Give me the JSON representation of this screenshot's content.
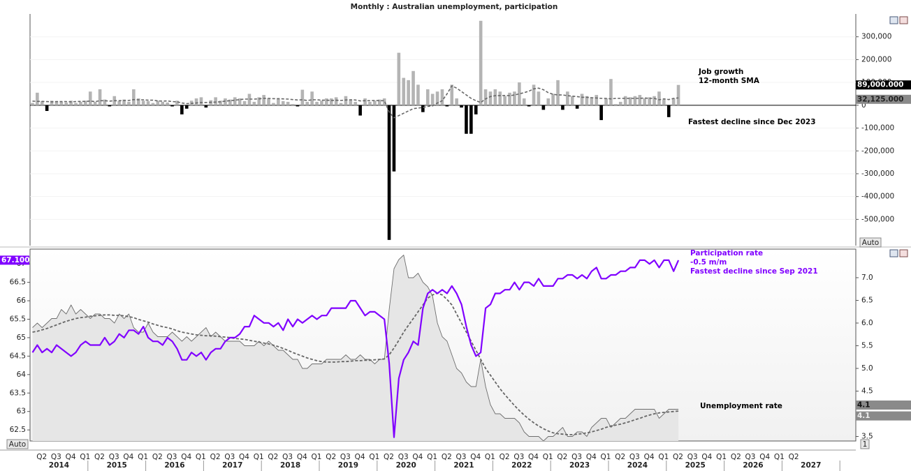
{
  "title": "Monthly : Australian unemployment, participation",
  "x_axis": {
    "quarters": [
      "Q2",
      "Q3",
      "Q4",
      "Q1",
      "Q2",
      "Q3",
      "Q4",
      "Q1",
      "Q2",
      "Q3",
      "Q4",
      "Q1",
      "Q2",
      "Q3",
      "Q4",
      "Q1",
      "Q2",
      "Q3",
      "Q4",
      "Q1",
      "Q2",
      "Q3",
      "Q4",
      "Q1",
      "Q2",
      "Q3",
      "Q4",
      "Q1",
      "Q2",
      "Q3",
      "Q4",
      "Q1",
      "Q2",
      "Q3",
      "Q4",
      "Q1",
      "Q2",
      "Q3",
      "Q4",
      "Q1",
      "Q2",
      "Q3",
      "Q4",
      "Q1",
      "Q2",
      "Q3",
      "Q4",
      "Q1",
      "Q2",
      "Q3",
      "Q4",
      "Q1",
      "Q2"
    ],
    "years": [
      2014,
      2015,
      2016,
      2017,
      2018,
      2019,
      2020,
      2021,
      2022,
      2023,
      2024,
      2025,
      2026,
      2027
    ]
  },
  "chart_data": [
    {
      "type": "bar",
      "series": [
        {
          "name": "Job growth",
          "type": "bar",
          "color": "#b4b4b4",
          "negative_color": "#000000",
          "last_label": "89,000.000",
          "values": [
            10000,
            55000,
            18000,
            -25000,
            20000,
            18000,
            15000,
            12000,
            20000,
            10000,
            15000,
            20000,
            60000,
            15000,
            70000,
            25000,
            -5000,
            40000,
            18000,
            25000,
            15000,
            70000,
            30000,
            20000,
            18000,
            10000,
            20000,
            15000,
            12000,
            -5000,
            20000,
            -40000,
            -15000,
            20000,
            30000,
            35000,
            -10000,
            22000,
            35000,
            20000,
            30000,
            25000,
            35000,
            30000,
            18000,
            50000,
            15000,
            35000,
            45000,
            30000,
            10000,
            28000,
            18000,
            15000,
            5000,
            -5000,
            68000,
            15000,
            60000,
            15000,
            20000,
            30000,
            30000,
            35000,
            10000,
            40000,
            25000,
            15000,
            -45000,
            30000,
            15000,
            20000,
            25000,
            30000,
            -590000,
            -290000,
            230000,
            120000,
            110000,
            150000,
            90000,
            -30000,
            70000,
            50000,
            60000,
            70000,
            -5000,
            90000,
            30000,
            -10000,
            -125000,
            -125000,
            -40000,
            370000,
            70000,
            60000,
            70000,
            60000,
            40000,
            55000,
            60000,
            100000,
            30000,
            -5000,
            90000,
            60000,
            -20000,
            30000,
            50000,
            110000,
            -20000,
            60000,
            40000,
            -15000,
            50000,
            40000,
            35000,
            45000,
            -65000,
            30000,
            115000,
            5000,
            15000,
            40000,
            35000,
            40000,
            45000,
            30000,
            35000,
            40000,
            60000,
            25000,
            -52000,
            30000,
            89000
          ]
        },
        {
          "name": "12-month SMA",
          "type": "line",
          "color": "#666666",
          "dashed": true,
          "last_label": "32,125.000",
          "values": [
            18000,
            17000,
            17000,
            16000,
            15000,
            16000,
            16000,
            16000,
            15000,
            16000,
            17000,
            17000,
            18000,
            16000,
            20000,
            20000,
            18000,
            20000,
            20000,
            21000,
            21000,
            25000,
            24000,
            24000,
            22000,
            22000,
            19000,
            18000,
            19000,
            16000,
            15000,
            10000,
            7000,
            8000,
            10000,
            12000,
            12000,
            13000,
            14000,
            15000,
            18000,
            20000,
            22000,
            25000,
            27000,
            27000,
            27000,
            28000,
            30000,
            30000,
            29000,
            29000,
            28000,
            27000,
            25000,
            23000,
            24000,
            21000,
            24000,
            24000,
            22000,
            22000,
            21000,
            22000,
            21000,
            23000,
            24000,
            23000,
            19000,
            20000,
            20000,
            21000,
            20000,
            20000,
            -30000,
            -55000,
            -45000,
            -35000,
            -25000,
            -15000,
            -12000,
            -10000,
            -5000,
            -3000,
            10000,
            20000,
            50000,
            85000,
            75000,
            60000,
            45000,
            30000,
            20000,
            12000,
            28000,
            38000,
            42000,
            42000,
            43000,
            42000,
            45000,
            50000,
            55000,
            62000,
            72000,
            75000,
            68000,
            55000,
            48000,
            45000,
            45000,
            42000,
            40000,
            38000,
            35000,
            35000,
            33000,
            32000,
            30000,
            30000,
            28000,
            30000,
            30000,
            30000,
            30000,
            30000,
            30000,
            32000,
            30000,
            30000,
            24000,
            28000,
            25000,
            30000,
            32125
          ]
        }
      ],
      "ylim": [
        -615000,
        400000
      ],
      "yticks": [
        {
          "value": 300000,
          "label": "300,000"
        },
        {
          "value": 200000,
          "label": "200,000"
        },
        {
          "value": 100000,
          "label": "100,000"
        },
        0,
        {
          "value": -100000,
          "label": "-100,000"
        },
        {
          "value": -200000,
          "label": "-200,000"
        },
        {
          "value": -300000,
          "label": "-300,000"
        },
        {
          "value": -400000,
          "label": "-400,000"
        },
        {
          "value": -500000,
          "label": "-500,000"
        }
      ],
      "annotations": [
        "Fastest decline since Dec 2023"
      ],
      "scale_label": "Auto"
    },
    {
      "type": "line",
      "series": [
        {
          "name": "Participation rate",
          "type": "line",
          "color": "#8000ff",
          "width": 2.2,
          "last_label": "67.100",
          "values": [
            64.6,
            64.8,
            64.6,
            64.7,
            64.6,
            64.8,
            64.7,
            64.6,
            64.5,
            64.6,
            64.8,
            64.9,
            64.8,
            64.8,
            64.8,
            65.0,
            64.8,
            64.9,
            65.1,
            65.0,
            65.2,
            65.2,
            65.1,
            65.3,
            65.0,
            64.9,
            64.9,
            64.8,
            65.0,
            64.9,
            64.7,
            64.4,
            64.4,
            64.6,
            64.5,
            64.6,
            64.4,
            64.6,
            64.7,
            64.7,
            64.9,
            65.0,
            65.0,
            65.1,
            65.3,
            65.3,
            65.6,
            65.5,
            65.4,
            65.4,
            65.3,
            65.4,
            65.2,
            65.5,
            65.3,
            65.5,
            65.4,
            65.5,
            65.6,
            65.5,
            65.6,
            65.6,
            65.8,
            65.8,
            65.8,
            65.8,
            66.0,
            66.0,
            65.8,
            65.6,
            65.7,
            65.7,
            65.6,
            65.5,
            64.3,
            62.3,
            63.9,
            64.4,
            64.6,
            64.9,
            64.8,
            65.8,
            66.2,
            66.3,
            66.2,
            66.3,
            66.2,
            66.4,
            66.2,
            65.9,
            65.3,
            64.8,
            64.5,
            64.6,
            65.8,
            65.9,
            66.2,
            66.2,
            66.3,
            66.3,
            66.5,
            66.3,
            66.5,
            66.5,
            66.4,
            66.6,
            66.4,
            66.4,
            66.4,
            66.6,
            66.6,
            66.7,
            66.7,
            66.6,
            66.7,
            66.6,
            66.8,
            66.9,
            66.6,
            66.6,
            66.7,
            66.7,
            66.8,
            66.8,
            66.9,
            66.9,
            67.1,
            67.1,
            67.0,
            67.1,
            66.9,
            67.1,
            67.1,
            66.8,
            67.1
          ]
        },
        {
          "name": "Unemployment rate",
          "type": "area",
          "axis": "y2",
          "color": "#6e6e6e",
          "fill": "#e6e6e6",
          "width": 0.9,
          "last_label": "4.1",
          "values": [
            5.9,
            6.0,
            5.9,
            6.0,
            6.1,
            6.1,
            6.3,
            6.2,
            6.4,
            6.2,
            6.3,
            6.2,
            6.1,
            6.2,
            6.2,
            6.1,
            6.1,
            6.0,
            6.2,
            6.1,
            6.2,
            5.9,
            5.8,
            5.8,
            6.0,
            5.8,
            5.7,
            5.7,
            5.7,
            5.8,
            5.7,
            5.6,
            5.7,
            5.6,
            5.7,
            5.8,
            5.9,
            5.7,
            5.8,
            5.7,
            5.6,
            5.6,
            5.6,
            5.6,
            5.5,
            5.5,
            5.5,
            5.6,
            5.5,
            5.6,
            5.5,
            5.4,
            5.4,
            5.3,
            5.2,
            5.2,
            5.0,
            5.0,
            5.1,
            5.1,
            5.1,
            5.2,
            5.2,
            5.2,
            5.2,
            5.3,
            5.2,
            5.2,
            5.3,
            5.2,
            5.2,
            5.1,
            5.2,
            5.2,
            6.3,
            7.2,
            7.4,
            7.5,
            7.0,
            7.0,
            7.1,
            6.9,
            6.8,
            6.6,
            6.0,
            5.7,
            5.6,
            5.3,
            5.0,
            4.9,
            4.7,
            4.6,
            4.6,
            5.2,
            4.6,
            4.2,
            4.0,
            4.0,
            3.9,
            3.9,
            3.9,
            3.8,
            3.6,
            3.5,
            3.5,
            3.5,
            3.4,
            3.5,
            3.5,
            3.6,
            3.7,
            3.5,
            3.5,
            3.6,
            3.6,
            3.5,
            3.7,
            3.8,
            3.9,
            3.9,
            3.7,
            3.8,
            3.9,
            3.9,
            4.0,
            4.1,
            4.1,
            4.1,
            4.1,
            4.1,
            3.9,
            4.0,
            4.1,
            4.1,
            4.1
          ]
        },
        {
          "type": "line",
          "axis": "y2",
          "color": "#666666",
          "dashed": true,
          "width": 1.8,
          "last_label": "4.1",
          "values": [
            5.8,
            5.82,
            5.85,
            5.88,
            5.92,
            5.96,
            6.0,
            6.04,
            6.07,
            6.1,
            6.12,
            6.13,
            6.15,
            6.16,
            6.17,
            6.18,
            6.18,
            6.17,
            6.17,
            6.16,
            6.14,
            6.12,
            6.08,
            6.05,
            6.02,
            5.98,
            5.95,
            5.92,
            5.9,
            5.87,
            5.83,
            5.8,
            5.78,
            5.76,
            5.74,
            5.73,
            5.72,
            5.72,
            5.71,
            5.7,
            5.69,
            5.68,
            5.66,
            5.65,
            5.64,
            5.62,
            5.6,
            5.58,
            5.56,
            5.54,
            5.51,
            5.48,
            5.44,
            5.4,
            5.35,
            5.31,
            5.27,
            5.23,
            5.2,
            5.17,
            5.15,
            5.14,
            5.14,
            5.14,
            5.15,
            5.15,
            5.16,
            5.17,
            5.17,
            5.18,
            5.18,
            5.19,
            5.2,
            5.21,
            5.3,
            5.45,
            5.62,
            5.8,
            5.95,
            6.1,
            6.25,
            6.4,
            6.55,
            6.62,
            6.66,
            6.62,
            6.52,
            6.4,
            6.2,
            6.0,
            5.8,
            5.6,
            5.4,
            5.2,
            5.0,
            4.85,
            4.7,
            4.55,
            4.42,
            4.3,
            4.18,
            4.07,
            3.97,
            3.88,
            3.8,
            3.73,
            3.67,
            3.62,
            3.58,
            3.56,
            3.55,
            3.54,
            3.54,
            3.55,
            3.56,
            3.58,
            3.6,
            3.63,
            3.66,
            3.7,
            3.73,
            3.75,
            3.77,
            3.8,
            3.83,
            3.87,
            3.9,
            3.94,
            3.97,
            4.0,
            4.02,
            4.03,
            4.04,
            4.05,
            4.06
          ]
        }
      ],
      "ylim": [
        62.2,
        67.4
      ],
      "yticks": [
        62.5,
        63,
        63.5,
        64,
        64.5,
        65,
        65.5,
        66,
        66.5,
        67
      ],
      "y2lim": [
        3.4,
        7.63
      ],
      "y2ticks": [
        {
          "value": 7,
          "label": "7.0"
        },
        6.5,
        {
          "value": 6,
          "label": "6.0"
        },
        5.5,
        {
          "value": 5,
          "label": "5.0"
        },
        4.5,
        3.5
      ],
      "annotations": [
        "-0.5 m/m",
        "Fastest decline since Sep 2021"
      ],
      "scale_labels": [
        "Auto",
        "1"
      ]
    }
  ]
}
